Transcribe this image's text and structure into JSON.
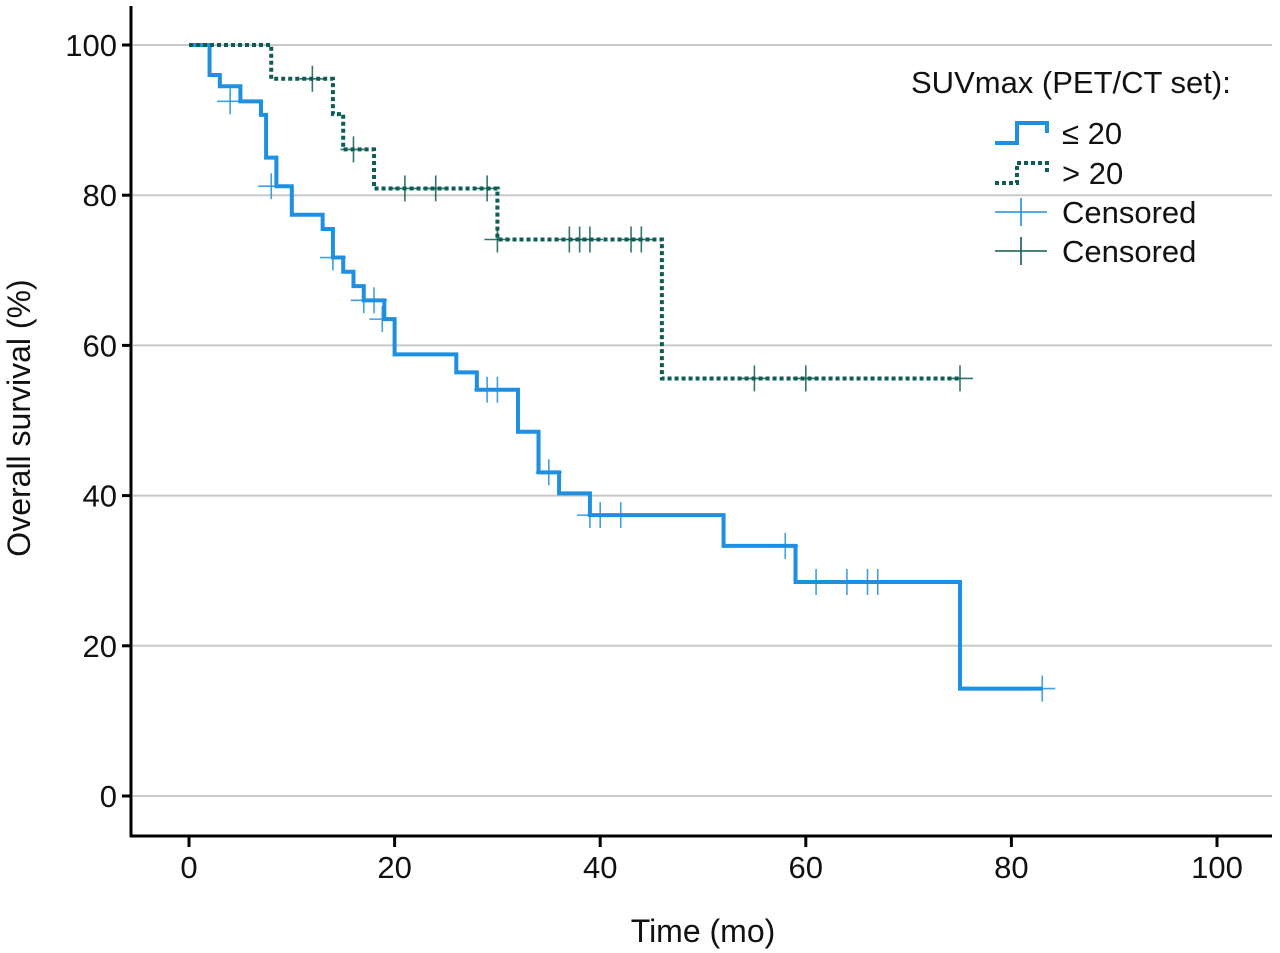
{
  "chart_data": {
    "type": "line",
    "subtype": "kaplan-meier",
    "title": "",
    "xlabel": "Time (mo)",
    "ylabel": "Overall survival (%)",
    "xlim": [
      0,
      100
    ],
    "ylim": [
      0,
      100
    ],
    "xticks": [
      0,
      20,
      40,
      60,
      80,
      100
    ],
    "yticks": [
      0,
      20,
      40,
      60,
      80,
      100
    ],
    "grid": "horizontal",
    "legend_position": "top-right",
    "legend_title": "SUVmax (PET/CT set):",
    "series": [
      {
        "name": "≤ 20",
        "color": "#1e8fe1",
        "line_style": "solid",
        "censored_label": "Censored",
        "steps": [
          [
            0,
            100
          ],
          [
            2,
            96
          ],
          [
            3,
            94.5
          ],
          [
            5,
            92.5
          ],
          [
            7,
            90.7
          ],
          [
            7.5,
            85
          ],
          [
            8.5,
            81.2
          ],
          [
            10,
            77.4
          ],
          [
            13,
            75.5
          ],
          [
            14,
            71.7
          ],
          [
            15,
            69.8
          ],
          [
            16,
            67.9
          ],
          [
            17,
            66
          ],
          [
            19,
            63.5
          ],
          [
            20,
            58.8
          ],
          [
            26,
            56.4
          ],
          [
            28,
            54.1
          ],
          [
            32,
            48.5
          ],
          [
            34,
            43.1
          ],
          [
            36,
            40.3
          ],
          [
            39,
            37.4
          ],
          [
            52,
            33.3
          ],
          [
            59,
            28.5
          ],
          [
            75,
            14.3
          ],
          [
            83,
            14.3
          ]
        ],
        "censored": [
          [
            4,
            92.5
          ],
          [
            8,
            81.2
          ],
          [
            14,
            71.7
          ],
          [
            17,
            66
          ],
          [
            18,
            66
          ],
          [
            18.8,
            63.5
          ],
          [
            29,
            54.1
          ],
          [
            30,
            54.1
          ],
          [
            35,
            43.1
          ],
          [
            39,
            37.4
          ],
          [
            40,
            37.4
          ],
          [
            42,
            37.4
          ],
          [
            58,
            33.3
          ],
          [
            61,
            28.5
          ],
          [
            64,
            28.5
          ],
          [
            66,
            28.5
          ],
          [
            67,
            28.5
          ],
          [
            83,
            14.3
          ]
        ]
      },
      {
        "name": "> 20",
        "color": "#0d5c55",
        "line_style": "dotted",
        "censored_label": "Censored",
        "steps": [
          [
            0,
            100
          ],
          [
            8,
            95.5
          ],
          [
            14,
            90.8
          ],
          [
            15,
            86.1
          ],
          [
            18,
            80.9
          ],
          [
            30,
            74.1
          ],
          [
            46,
            55.6
          ],
          [
            75,
            55.6
          ]
        ],
        "censored": [
          [
            12,
            95.5
          ],
          [
            16,
            86.1
          ],
          [
            21,
            80.9
          ],
          [
            24,
            80.9
          ],
          [
            29,
            80.9
          ],
          [
            30,
            74.1
          ],
          [
            37,
            74.1
          ],
          [
            38,
            74.1
          ],
          [
            39,
            74.1
          ],
          [
            43,
            74.1
          ],
          [
            44,
            74.1
          ],
          [
            55,
            55.6
          ],
          [
            60,
            55.6
          ],
          [
            75,
            55.6
          ]
        ]
      }
    ]
  }
}
